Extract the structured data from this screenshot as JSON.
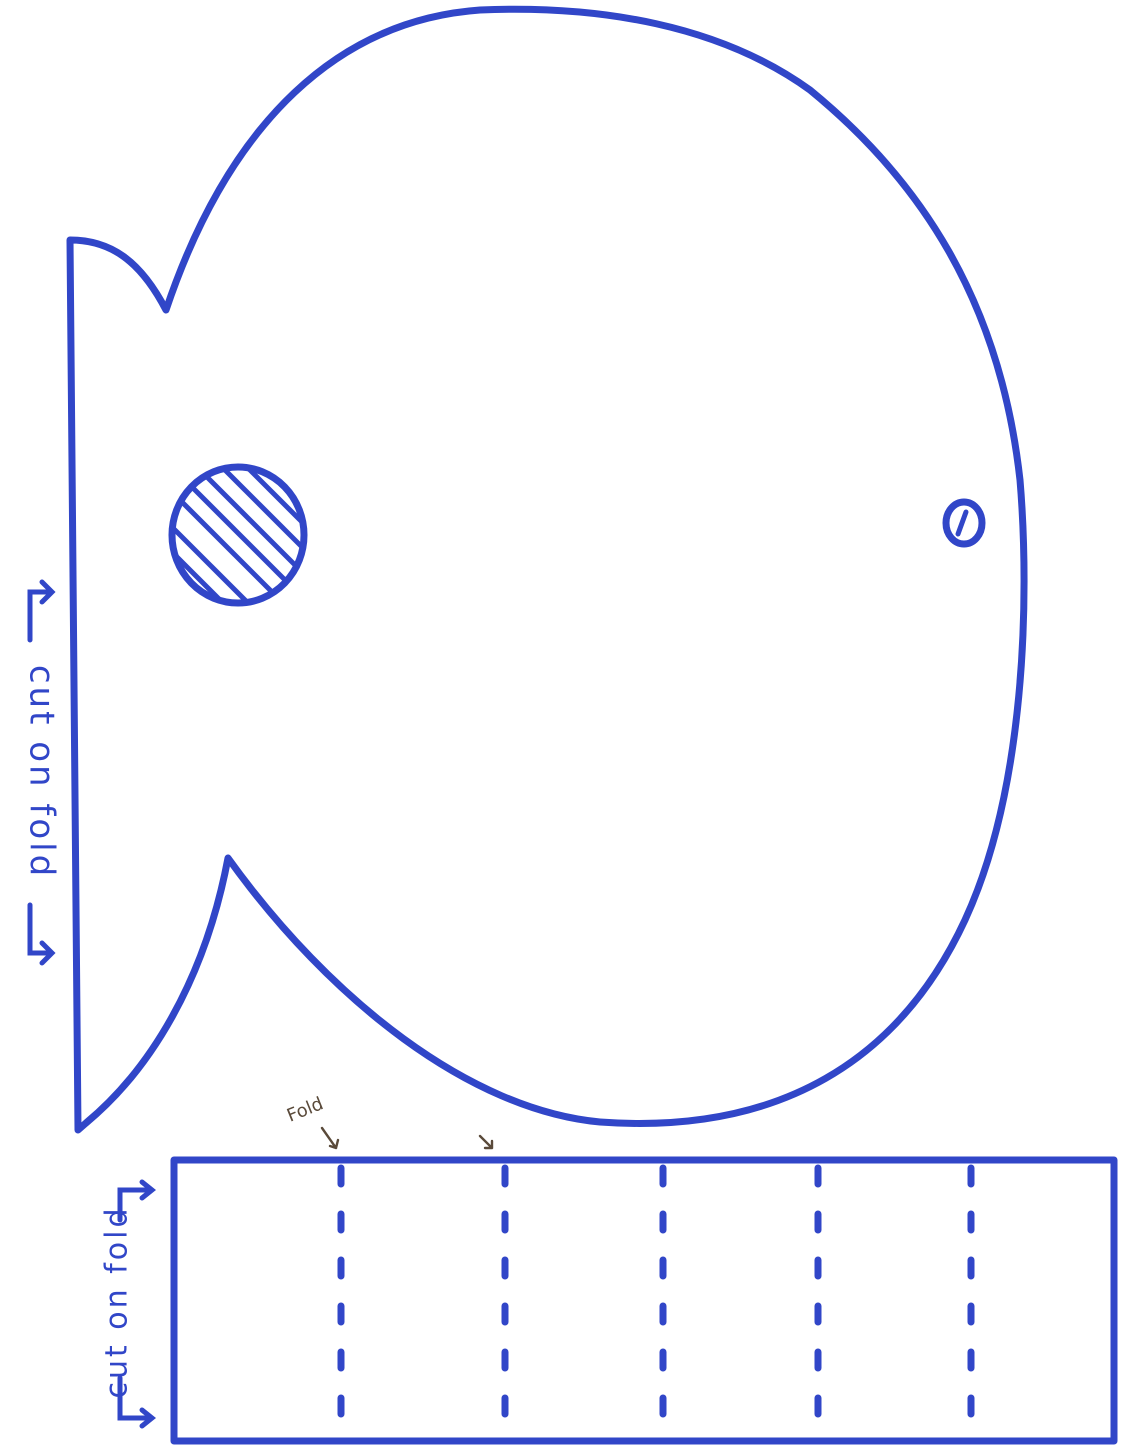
{
  "template": {
    "whale_label": "cut on fold",
    "strip_label": "cut on fold",
    "fold_label": "Fold",
    "ink_color": "#3146c8",
    "pencil_color": "#5a4a3a"
  }
}
